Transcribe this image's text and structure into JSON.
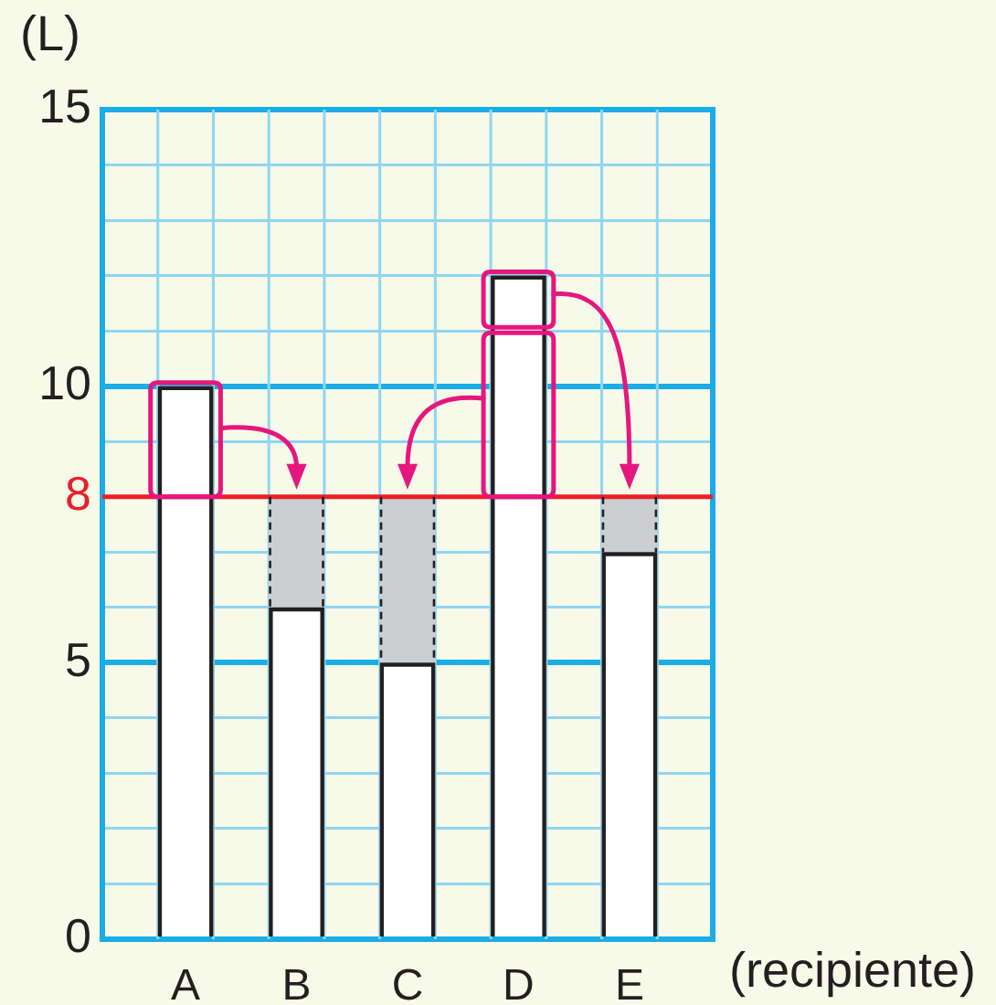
{
  "chart_data": {
    "type": "bar",
    "categories": [
      "A",
      "B",
      "C",
      "D",
      "E"
    ],
    "series": [
      {
        "color": "#ffffff",
        "values": [
          10,
          6,
          5,
          12,
          7
        ]
      },
      {
        "color": "#cdced2",
        "values": [
          null,
          2,
          3,
          null,
          1
        ]
      }
    ],
    "stacked": true,
    "xlabel": "(recipiente)",
    "ylabel": "(L)",
    "ylim": [
      0,
      15
    ],
    "yticks": [
      0,
      {
        "value": 1,
        "label": null
      },
      {
        "value": 2,
        "label": null
      },
      {
        "value": 3,
        "label": null
      },
      {
        "value": 4,
        "label": null
      },
      5,
      {
        "value": 6,
        "label": null
      },
      {
        "value": 7,
        "label": null
      },
      {
        "value": 8,
        "label": null
      },
      {
        "value": 9,
        "label": null
      },
      10,
      {
        "value": 11,
        "label": null
      },
      {
        "value": 12,
        "label": null
      },
      {
        "value": 13,
        "label": null
      },
      {
        "value": 14,
        "label": null
      },
      15
    ],
    "grid": true,
    "ref_lines": [
      {
        "axis": "y",
        "value": 8,
        "label": "8",
        "color": "#e8202a"
      }
    ]
  }
}
